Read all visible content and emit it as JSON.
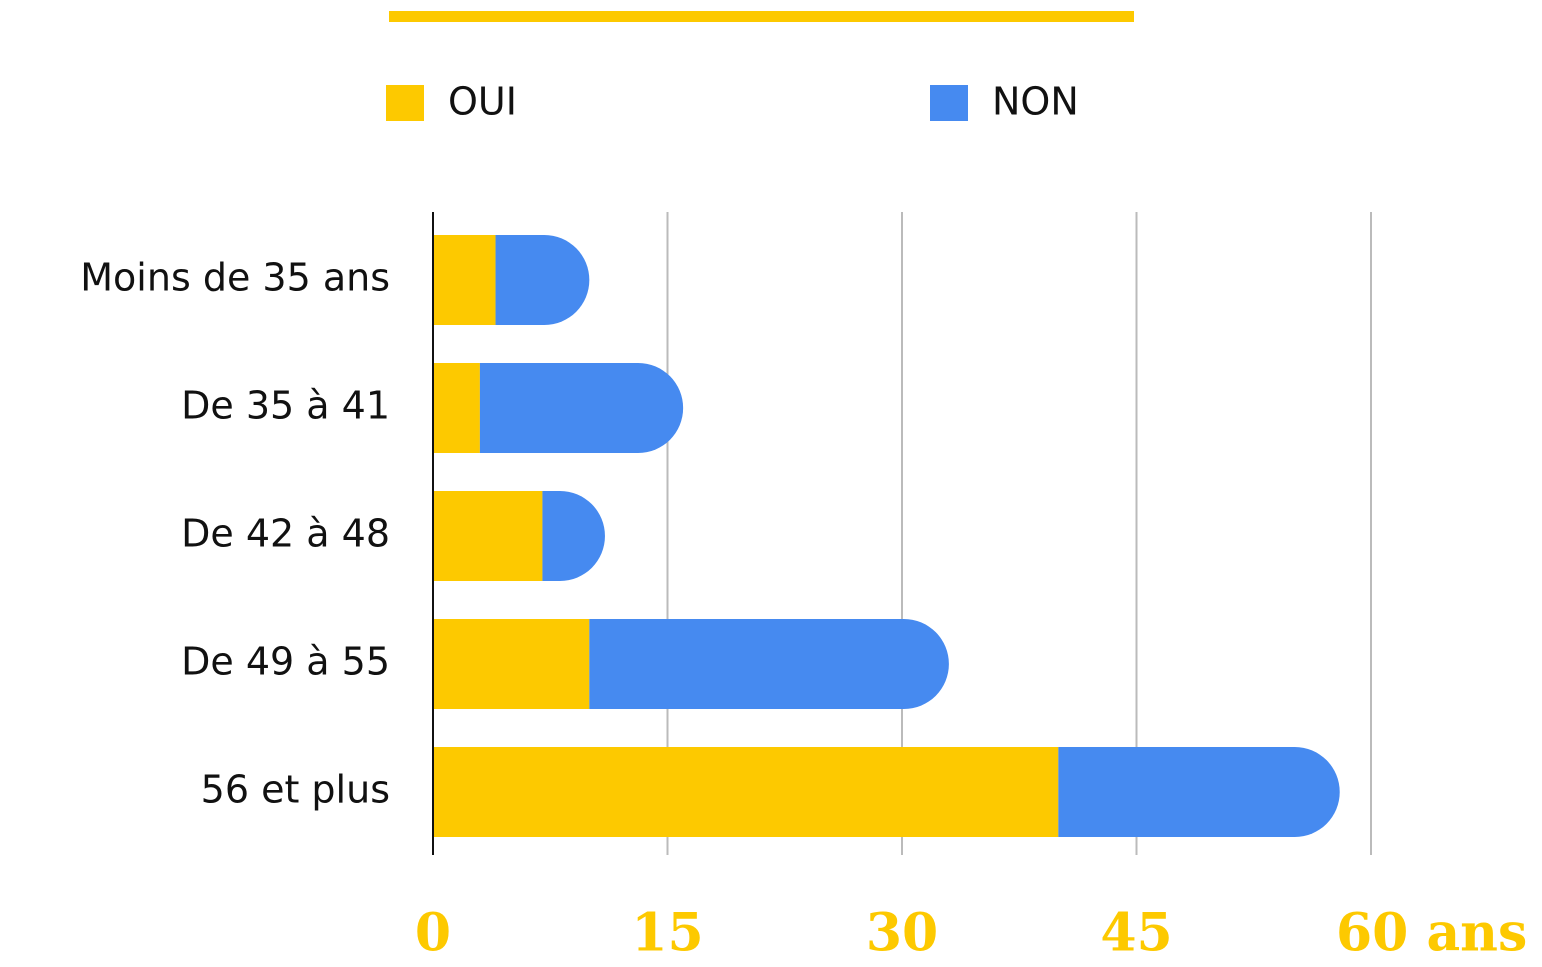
{
  "chart_data": {
    "type": "stacked_barh",
    "categories": [
      "Moins de 35 ans",
      "De 35 à 41",
      "De 42 à 48",
      "De 49 à 55",
      "56 et plus"
    ],
    "series": [
      {
        "name": "OUI",
        "color": "#fdc900",
        "values": [
          4,
          3,
          7,
          10,
          40
        ]
      },
      {
        "name": "NON",
        "color": "#468af0",
        "values": [
          6,
          13,
          4,
          23,
          18
        ]
      }
    ],
    "xlim": [
      0,
      60
    ],
    "xticks": [
      0,
      15,
      30,
      45,
      {
        "value": 60,
        "label": "60 ans"
      }
    ],
    "grid": true,
    "legend": "top"
  }
}
